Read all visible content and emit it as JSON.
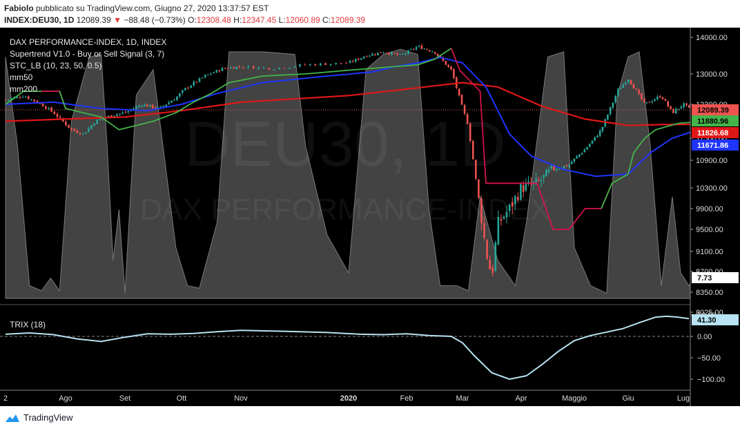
{
  "header": {
    "author": "Fabiolo",
    "published": " pubblicato su TradingView.com, Giugno 27, 2020 13:37:57 EST",
    "symbol": "INDEX:DEU30, 1D",
    "last": "12089.39",
    "change": "−88.48 (−0.73%)",
    "o_label": "O:",
    "o": "12308.48",
    "h_label": "H:",
    "h": "12347.45",
    "l_label": "L:",
    "l": "12060.89",
    "c_label": "C:",
    "c": "12089.39"
  },
  "legend": {
    "title": "DAX PERFORMANCE-INDEX, 1D, INDEX",
    "supertrend": "Supertrend V1.0 - Buy or Sell Signal (3, 7)",
    "stc": "STC_LB (10, 23, 50, 0.5)",
    "mm50": "mm50",
    "mm200": "mm200",
    "trix": "TRIX (18)"
  },
  "watermark": {
    "big": "DEU30, 1D",
    "small": "DAX PERFORMANCE-INDEX"
  },
  "footer": {
    "brand": "TradingView"
  },
  "colors": {
    "background": "#000000",
    "up": "#26a69a",
    "down": "#ef5350",
    "supertrend_up": "#43b54a",
    "supertrend_down": "#d6134a",
    "mm50": "#1f35ff",
    "mm200": "#e01717",
    "stc": "#5a5a5a",
    "trix": "#b7e3f2"
  },
  "chart_data": [
    {
      "type": "candlestick",
      "title": "DAX PERFORMANCE-INDEX, 1D, INDEX",
      "x_ticks": [
        "2",
        "Ago",
        "Set",
        "Ott",
        "Nov",
        "2020",
        "Feb",
        "Mar",
        "Apr",
        "Maggio",
        "Giu",
        "Lug"
      ],
      "y_ticks": [
        14000,
        13000,
        12300,
        11500,
        10900,
        10300,
        9900,
        9500,
        9100,
        8700,
        8350,
        8025
      ],
      "y_tick_labels": [
        "14000.00",
        "13000.00",
        "12300.00",
        "11500.00",
        "10900.00",
        "10300.00",
        "9900.00",
        "9500.00",
        "9100.00",
        "8700.00",
        "8350.00",
        "8025.00"
      ],
      "price_path": {
        "x_months_from_jul2019": [
          0,
          0.3,
          0.6,
          0.8,
          1.1,
          1.3,
          1.5,
          1.8,
          2.0,
          2.3,
          2.6,
          2.9,
          3.1,
          3.4,
          3.7,
          4.0,
          4.3,
          4.6,
          5.0,
          5.3,
          5.6,
          5.9,
          6.2,
          6.5,
          6.8,
          7.0,
          7.1,
          7.2,
          7.4,
          7.5,
          7.6,
          7.8,
          8.0,
          8.3,
          8.6,
          8.9,
          9.2,
          9.5,
          9.8,
          10.0,
          10.3,
          10.6,
          10.8,
          11.0,
          11.2
        ],
        "close": [
          12400,
          12500,
          12300,
          12100,
          11700,
          11600,
          11900,
          12050,
          12100,
          12300,
          12200,
          12450,
          12700,
          12950,
          13150,
          13200,
          13150,
          13250,
          13300,
          13500,
          13600,
          13500,
          13750,
          13600,
          13100,
          12200,
          11800,
          10700,
          9100,
          8600,
          9600,
          9900,
          10300,
          10400,
          10700,
          10800,
          11200,
          11700,
          12600,
          12900,
          12300,
          12500,
          12100,
          12300,
          12089
        ]
      },
      "supertrend": {
        "x_months_from_jul2019": [
          0,
          0.3,
          0.6,
          0.9,
          1.0,
          1.3,
          1.6,
          1.9,
          2.2,
          2.5,
          2.9,
          3.2,
          3.5,
          3.8,
          4.2,
          4.6,
          5.0,
          5.4,
          5.8,
          6.2,
          6.5,
          6.8,
          6.95,
          7.3,
          7.4,
          7.6,
          8.3,
          8.6,
          8.9,
          9.2,
          9.5,
          9.7,
          10.0,
          10.1,
          10.3,
          10.5,
          10.9,
          11.2
        ],
        "level": [
          12300,
          12600,
          12600,
          12600,
          12200,
          12100,
          12000,
          11700,
          11800,
          11900,
          12100,
          12350,
          12550,
          12800,
          12950,
          13000,
          13100,
          13150,
          13200,
          13250,
          13400,
          13700,
          13100,
          12600,
          10400,
          10400,
          10400,
          9500,
          9500,
          9900,
          9900,
          10400,
          10600,
          11100,
          11500,
          11700,
          11850,
          11880.96
        ],
        "segments": [
          "up: Jul 2019 - Jul 2019",
          "down: Jul 2019 - Aug 2019",
          "up: Aug 2019 - Feb 2020",
          "down: Feb 2020 - Apr 2020",
          "up: Apr 2020 - Jun 2020"
        ],
        "last": 11880.96
      },
      "mm50": {
        "x_months_from_jul2019": [
          0,
          0.8,
          1.6,
          2.4,
          3.0,
          3.6,
          4.2,
          4.8,
          5.4,
          5.8,
          6.2,
          6.6,
          7.0,
          7.4,
          7.8,
          8.2,
          8.8,
          9.4,
          10.0,
          10.4,
          10.8,
          11.2
        ],
        "value": [
          12300,
          12350,
          12200,
          12150,
          12300,
          12550,
          12800,
          12950,
          13050,
          13200,
          13300,
          13450,
          13300,
          12700,
          11600,
          11000,
          10700,
          10550,
          10600,
          11100,
          11500,
          11671.86
        ],
        "last": 11671.86
      },
      "mm200": {
        "x_months_from_jul2019": [
          0,
          1,
          2,
          3,
          4,
          5,
          6,
          7,
          7.6,
          8.4,
          9.2,
          10.0,
          10.6,
          11.2
        ],
        "value": [
          11900,
          11950,
          12000,
          12150,
          12350,
          12500,
          12650,
          12800,
          12700,
          12250,
          11950,
          11800,
          11820,
          11826.68
        ],
        "last": 11826.68
      },
      "last_badges": {
        "price": "12089.39",
        "supertrend": "11880.96",
        "mm200": "11826.68",
        "mm50": "11671.86"
      }
    },
    {
      "type": "area",
      "title": "STC_LB (10, 23, 50, 0.5)",
      "range": [
        0,
        100
      ],
      "x_months_from_jul2019": [
        0,
        0.2,
        0.4,
        0.6,
        0.75,
        0.9,
        1.1,
        1.4,
        1.6,
        1.7,
        1.8,
        1.9,
        2.0,
        2.2,
        2.5,
        2.7,
        2.9,
        3.1,
        3.3,
        3.6,
        3.8,
        4.2,
        4.5,
        4.6,
        4.8,
        5.0,
        5.3,
        5.6,
        5.9,
        6.2,
        6.4,
        6.6,
        6.9,
        7.1,
        7.3,
        7.6,
        7.9,
        8.1,
        8.5,
        8.8,
        9.0,
        9.3,
        9.6,
        9.8,
        10.0,
        10.2,
        10.4,
        10.6,
        10.8,
        10.95,
        11.1,
        11.2
      ],
      "value": [
        95,
        60,
        5,
        3,
        8,
        3,
        70,
        95,
        96,
        60,
        15,
        35,
        2,
        80,
        90,
        55,
        20,
        5,
        4,
        30,
        97,
        97,
        96,
        60,
        25,
        10,
        90,
        96,
        98,
        96,
        35,
        5,
        5,
        3,
        40,
        15,
        5,
        30,
        95,
        97,
        20,
        5,
        2,
        80,
        95,
        97,
        60,
        5,
        40,
        10,
        5,
        7.73
      ],
      "last": "7.73"
    },
    {
      "type": "line",
      "title": "TRIX (18)",
      "y_ticks": [
        50,
        0,
        -50,
        -100
      ],
      "y_tick_labels": [
        "50.00",
        "0.00",
        "−50.00",
        "−100.00"
      ],
      "x_months_from_jul2019": [
        0,
        0.4,
        0.8,
        1.2,
        1.6,
        2.0,
        2.4,
        2.8,
        3.2,
        3.6,
        4.0,
        4.4,
        4.8,
        5.2,
        5.6,
        6.0,
        6.4,
        6.8,
        7.0,
        7.2,
        7.5,
        7.8,
        8.1,
        8.4,
        8.7,
        9.0,
        9.3,
        9.6,
        9.9,
        10.2,
        10.5,
        10.7,
        10.9,
        11.1
      ],
      "value": [
        5,
        8,
        4,
        -6,
        -12,
        -2,
        6,
        5,
        7,
        11,
        14,
        12,
        9,
        5,
        4,
        6,
        2,
        0,
        -15,
        -45,
        -85,
        -100,
        -92,
        -65,
        -35,
        -10,
        2,
        10,
        18,
        32,
        45,
        47,
        45,
        41.3
      ],
      "last": "41.30"
    }
  ]
}
